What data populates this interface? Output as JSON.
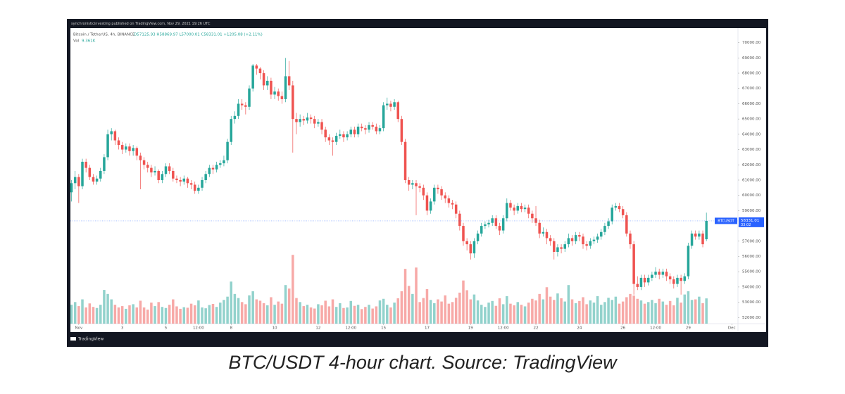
{
  "header": {
    "publisher": "synchronisticinvesting published on TradingView.com, Nov 29, 2021 19:26 UTC"
  },
  "chart_data": {
    "type": "candlestick",
    "legend": {
      "symbol": "Bitcoin / TetherUS, 4h, BINANCE",
      "ohlc": "O57125.93 H58869.97 L57000.01 C58331.01 +1205.08 (+2.11%)",
      "volume_name": "Vol",
      "volume": "9.361K"
    },
    "up_color": "#26a69a",
    "down_color": "#ef5350",
    "xlim": [
      -0.3,
      183.7
    ],
    "xticks": [
      {
        "value": 2,
        "label": "Nov"
      },
      {
        "value": 14,
        "label": "3"
      },
      {
        "value": 26,
        "label": "5"
      },
      {
        "value": 35,
        "label": "12:00"
      },
      {
        "value": 44,
        "label": "8"
      },
      {
        "value": 56,
        "label": "10"
      },
      {
        "value": 68,
        "label": "12"
      },
      {
        "value": 77,
        "label": "12:00"
      },
      {
        "value": 86,
        "label": "15"
      },
      {
        "value": 98,
        "label": "17"
      },
      {
        "value": 110,
        "label": "19"
      },
      {
        "value": 119,
        "label": "12:00"
      },
      {
        "value": 128,
        "label": "22"
      },
      {
        "value": 140,
        "label": "24"
      },
      {
        "value": 152,
        "label": "26"
      },
      {
        "value": 161,
        "label": "12:00"
      },
      {
        "value": 170,
        "label": "29"
      },
      {
        "value": 182,
        "label": "Dec"
      }
    ],
    "ylim": [
      51600,
      70950
    ],
    "yticks": [
      {
        "value": 52000,
        "label": "52000.00"
      },
      {
        "value": 53000,
        "label": "53000.00"
      },
      {
        "value": 54000,
        "label": "54000.00"
      },
      {
        "value": 55000,
        "label": "55000.00"
      },
      {
        "value": 56000,
        "label": "56000.00"
      },
      {
        "value": 57000,
        "label": "57000.00"
      },
      {
        "value": 58000,
        "label": "58000.00"
      },
      {
        "value": 59000,
        "label": "59000.00"
      },
      {
        "value": 60000,
        "label": "60000.00"
      },
      {
        "value": 61000,
        "label": "61000.00"
      },
      {
        "value": 62000,
        "label": "62000.00"
      },
      {
        "value": 63000,
        "label": "63000.00"
      },
      {
        "value": 64000,
        "label": "64000.00"
      },
      {
        "value": 65000,
        "label": "65000.00"
      },
      {
        "value": 66000,
        "label": "66000.00"
      },
      {
        "value": 67000,
        "label": "67000.00"
      },
      {
        "value": 68000,
        "label": "68000.00"
      },
      {
        "value": 69000,
        "label": "69000.00"
      },
      {
        "value": 70000,
        "label": "70000.00"
      }
    ],
    "volume_lim": [
      0,
      60000
    ],
    "ohlc": [
      [
        60200,
        61000,
        59600,
        60800
      ],
      [
        60800,
        61600,
        60400,
        61200
      ],
      [
        61200,
        61400,
        59500,
        60600
      ],
      [
        60600,
        62400,
        60400,
        62200
      ],
      [
        62200,
        62400,
        61500,
        61800
      ],
      [
        61800,
        62000,
        61000,
        61200
      ],
      [
        61200,
        61400,
        60700,
        60900
      ],
      [
        60900,
        61300,
        60700,
        61100
      ],
      [
        61100,
        61800,
        60900,
        61600
      ],
      [
        61600,
        62700,
        61400,
        62500
      ],
      [
        62500,
        64300,
        62300,
        64000
      ],
      [
        64000,
        64400,
        63600,
        64200
      ],
      [
        64200,
        64300,
        63300,
        63600
      ],
      [
        63600,
        63800,
        63000,
        63300
      ],
      [
        63300,
        63500,
        62700,
        63000
      ],
      [
        63000,
        63400,
        62800,
        63200
      ],
      [
        63200,
        63400,
        62600,
        62900
      ],
      [
        62900,
        63300,
        62600,
        63100
      ],
      [
        63100,
        63200,
        62300,
        62600
      ],
      [
        62600,
        62800,
        60400,
        62300
      ],
      [
        62300,
        62500,
        61700,
        62000
      ],
      [
        62000,
        62200,
        61500,
        61800
      ],
      [
        61800,
        62000,
        61200,
        61500
      ],
      [
        61500,
        61900,
        61300,
        61600
      ],
      [
        61600,
        61700,
        60800,
        61000
      ],
      [
        61000,
        61600,
        60800,
        61400
      ],
      [
        61400,
        62100,
        61200,
        61900
      ],
      [
        61900,
        62100,
        61400,
        61600
      ],
      [
        61600,
        61800,
        60900,
        61100
      ],
      [
        61100,
        61300,
        60800,
        61000
      ],
      [
        61000,
        61200,
        60600,
        60900
      ],
      [
        60900,
        61300,
        60700,
        61100
      ],
      [
        61100,
        61200,
        60500,
        60800
      ],
      [
        60800,
        61000,
        60400,
        60700
      ],
      [
        60700,
        60900,
        60100,
        60300
      ],
      [
        60300,
        60700,
        60100,
        60500
      ],
      [
        60500,
        61200,
        60300,
        61000
      ],
      [
        61000,
        61600,
        60800,
        61400
      ],
      [
        61400,
        62000,
        61200,
        61800
      ],
      [
        61800,
        62000,
        61400,
        61700
      ],
      [
        61700,
        62200,
        61500,
        62000
      ],
      [
        62000,
        62300,
        61800,
        62100
      ],
      [
        62100,
        62600,
        61900,
        62300
      ],
      [
        62300,
        63700,
        62100,
        63500
      ],
      [
        63500,
        65200,
        63300,
        65000
      ],
      [
        65000,
        65500,
        64700,
        65200
      ],
      [
        65200,
        66300,
        65000,
        66000
      ],
      [
        66000,
        66300,
        65600,
        65900
      ],
      [
        65900,
        66100,
        65300,
        65800
      ],
      [
        65800,
        67200,
        65600,
        67000
      ],
      [
        67000,
        68600,
        66800,
        68500
      ],
      [
        68500,
        68600,
        67900,
        68300
      ],
      [
        68300,
        68400,
        67600,
        68000
      ],
      [
        68000,
        68200,
        66900,
        67200
      ],
      [
        67200,
        67800,
        66900,
        67500
      ],
      [
        67500,
        67700,
        66300,
        66600
      ],
      [
        66600,
        67100,
        66300,
        66800
      ],
      [
        66800,
        67000,
        66200,
        66500
      ],
      [
        66500,
        66800,
        66000,
        66300
      ],
      [
        66300,
        69000,
        66100,
        67800
      ],
      [
        67800,
        68800,
        66900,
        67200
      ],
      [
        67200,
        67500,
        62800,
        65000
      ],
      [
        65000,
        65400,
        64000,
        64800
      ],
      [
        64800,
        65300,
        64500,
        65000
      ],
      [
        65000,
        65200,
        64600,
        64900
      ],
      [
        64900,
        65400,
        64700,
        65100
      ],
      [
        65100,
        65300,
        64700,
        65000
      ],
      [
        65000,
        65200,
        64400,
        64700
      ],
      [
        64700,
        65000,
        64500,
        64800
      ],
      [
        64800,
        65000,
        64000,
        64300
      ],
      [
        64300,
        64500,
        63500,
        63800
      ],
      [
        63800,
        64000,
        63300,
        63600
      ],
      [
        63600,
        63800,
        62600,
        63500
      ],
      [
        63500,
        64100,
        63300,
        63900
      ],
      [
        63900,
        64300,
        63700,
        64000
      ],
      [
        64000,
        64200,
        63500,
        63800
      ],
      [
        63800,
        64200,
        63600,
        64000
      ],
      [
        64000,
        64500,
        63800,
        64300
      ],
      [
        64300,
        64500,
        63800,
        64000
      ],
      [
        64000,
        64700,
        63800,
        64500
      ],
      [
        64500,
        64700,
        64200,
        64400
      ],
      [
        64400,
        64600,
        64000,
        64300
      ],
      [
        64300,
        64800,
        64100,
        64600
      ],
      [
        64600,
        64800,
        64300,
        64500
      ],
      [
        64500,
        64700,
        64000,
        64200
      ],
      [
        64200,
        64600,
        64000,
        64400
      ],
      [
        64400,
        66100,
        64200,
        65900
      ],
      [
        65900,
        66400,
        65600,
        66000
      ],
      [
        66000,
        66200,
        65500,
        65800
      ],
      [
        65800,
        66300,
        65600,
        66100
      ],
      [
        66100,
        66200,
        64800,
        65000
      ],
      [
        65000,
        65200,
        63300,
        63500
      ],
      [
        63500,
        63700,
        60800,
        61000
      ],
      [
        61000,
        61200,
        60300,
        60700
      ],
      [
        60700,
        61000,
        60400,
        60800
      ],
      [
        60800,
        61000,
        58700,
        60600
      ],
      [
        60600,
        60800,
        60200,
        60500
      ],
      [
        60500,
        60700,
        59700,
        60000
      ],
      [
        60000,
        60200,
        58700,
        59000
      ],
      [
        59000,
        59800,
        58800,
        59600
      ],
      [
        59600,
        60700,
        59400,
        60500
      ],
      [
        60500,
        60700,
        60100,
        60400
      ],
      [
        60400,
        60600,
        59700,
        60000
      ],
      [
        60000,
        60200,
        59500,
        59800
      ],
      [
        59800,
        60000,
        59200,
        59500
      ],
      [
        59500,
        59700,
        59100,
        59400
      ],
      [
        59400,
        59600,
        58500,
        58800
      ],
      [
        58800,
        59000,
        57700,
        58000
      ],
      [
        58000,
        58200,
        56700,
        57000
      ],
      [
        57000,
        57200,
        56400,
        56800
      ],
      [
        56800,
        57000,
        55800,
        56200
      ],
      [
        56200,
        57200,
        55900,
        57000
      ],
      [
        57000,
        57700,
        56800,
        57500
      ],
      [
        57500,
        58200,
        57300,
        58000
      ],
      [
        58000,
        58300,
        57800,
        58100
      ],
      [
        58100,
        58400,
        57900,
        58200
      ],
      [
        58200,
        58700,
        58000,
        58500
      ],
      [
        58500,
        58700,
        57800,
        58000
      ],
      [
        58000,
        58200,
        57400,
        57700
      ],
      [
        57700,
        58700,
        57500,
        58500
      ],
      [
        58500,
        59800,
        58300,
        59500
      ],
      [
        59500,
        59700,
        59000,
        59200
      ],
      [
        59200,
        59400,
        58700,
        59000
      ],
      [
        59000,
        59500,
        58800,
        59300
      ],
      [
        59300,
        59500,
        58900,
        59100
      ],
      [
        59100,
        59400,
        58900,
        59200
      ],
      [
        59200,
        59400,
        58500,
        58800
      ],
      [
        58800,
        59000,
        58200,
        58500
      ],
      [
        58500,
        59300,
        58000,
        58200
      ],
      [
        58200,
        58400,
        57200,
        57500
      ],
      [
        57500,
        57900,
        57300,
        57600
      ],
      [
        57600,
        57800,
        56800,
        57200
      ],
      [
        57200,
        57400,
        56700,
        57000
      ],
      [
        57000,
        57200,
        55800,
        56300
      ],
      [
        56300,
        56800,
        56000,
        56600
      ],
      [
        56600,
        56800,
        56200,
        56500
      ],
      [
        56500,
        57000,
        56300,
        56800
      ],
      [
        56800,
        57500,
        56600,
        57200
      ],
      [
        57200,
        57400,
        56700,
        57000
      ],
      [
        57000,
        57600,
        56800,
        57400
      ],
      [
        57400,
        57600,
        57000,
        57300
      ],
      [
        57300,
        57500,
        56500,
        56800
      ],
      [
        56800,
        57000,
        56400,
        56700
      ],
      [
        56700,
        57200,
        56500,
        57000
      ],
      [
        57000,
        57300,
        56800,
        57100
      ],
      [
        57100,
        57500,
        56900,
        57300
      ],
      [
        57300,
        57800,
        57100,
        57600
      ],
      [
        57600,
        58200,
        57400,
        58000
      ],
      [
        58000,
        58500,
        57800,
        58300
      ],
      [
        58300,
        59400,
        58100,
        59200
      ],
      [
        59200,
        59500,
        59000,
        59300
      ],
      [
        59300,
        59500,
        58900,
        59100
      ],
      [
        59100,
        59300,
        58500,
        58700
      ],
      [
        58700,
        58900,
        57300,
        57500
      ],
      [
        57500,
        57700,
        56500,
        56800
      ],
      [
        56800,
        57000,
        53500,
        54200
      ],
      [
        54200,
        54700,
        53800,
        54000
      ],
      [
        54000,
        54800,
        53800,
        54600
      ],
      [
        54600,
        54800,
        54000,
        54300
      ],
      [
        54300,
        54800,
        54100,
        54600
      ],
      [
        54600,
        55000,
        54400,
        54800
      ],
      [
        54800,
        55300,
        54600,
        55000
      ],
      [
        55000,
        55200,
        54500,
        54800
      ],
      [
        54800,
        55200,
        54600,
        55000
      ],
      [
        55000,
        55200,
        54400,
        54700
      ],
      [
        54700,
        54900,
        54200,
        54500
      ],
      [
        54500,
        54700,
        53900,
        54200
      ],
      [
        54200,
        54800,
        54000,
        54600
      ],
      [
        54600,
        54800,
        53500,
        54400
      ],
      [
        54400,
        54900,
        54200,
        54700
      ],
      [
        54700,
        56900,
        54500,
        56700
      ],
      [
        56700,
        57700,
        56500,
        57500
      ],
      [
        57500,
        57700,
        57100,
        57300
      ],
      [
        57300,
        57700,
        57100,
        57500
      ],
      [
        57500,
        57700,
        56600,
        56800
      ],
      [
        57125.93,
        58869.97,
        57000.01,
        58331.01
      ]
    ],
    "volume": [
      7000,
      8000,
      6500,
      9000,
      6000,
      7500,
      6200,
      5800,
      7000,
      12500,
      11000,
      9000,
      7000,
      6000,
      6500,
      5500,
      6800,
      7200,
      6000,
      8500,
      6000,
      5200,
      7800,
      6500,
      8000,
      6200,
      5800,
      7000,
      9000,
      6400,
      5500,
      6100,
      5900,
      7400,
      6800,
      8600,
      6000,
      5700,
      6900,
      7300,
      6200,
      7800,
      8800,
      10000,
      15600,
      11000,
      9500,
      8000,
      7200,
      10500,
      12000,
      9000,
      8500,
      7600,
      6800,
      9800,
      7000,
      8200,
      7400,
      14300,
      13000,
      25500,
      9500,
      8000,
      6500,
      7000,
      6000,
      5600,
      7200,
      6800,
      8500,
      6400,
      9000,
      6200,
      7600,
      5800,
      6000,
      8400,
      6600,
      7000,
      5400,
      6200,
      7000,
      5600,
      6400,
      8600,
      9200,
      7000,
      6000,
      7800,
      9400,
      12000,
      20300,
      14000,
      11000,
      20800,
      8000,
      9500,
      12800,
      8800,
      7600,
      9000,
      8200,
      10500,
      7400,
      8000,
      9600,
      11500,
      16000,
      12400,
      9000,
      10800,
      8600,
      7000,
      6200,
      7800,
      8400,
      6600,
      9400,
      7200,
      10200,
      7400,
      6800,
      8000,
      7000,
      6400,
      7800,
      9200,
      8600,
      11000,
      9000,
      13500,
      10000,
      8800,
      11200,
      9400,
      8200,
      14300,
      9000,
      7600,
      8400,
      9800,
      7200,
      8600,
      7800,
      10200,
      7000,
      8000,
      9600,
      8800,
      10000,
      7400,
      8200,
      9800,
      11000,
      10400,
      9200,
      8600,
      7400,
      8000,
      8800,
      7600,
      9200,
      8200,
      7000,
      8400,
      6800,
      9600,
      7800,
      10800,
      12000,
      8800,
      9000,
      10000,
      7600,
      9361
    ],
    "price_label": {
      "symbol": "BTCUSDT",
      "price": "58331.01",
      "countdown": "33:02"
    },
    "source_logo": "TradingView",
    "caption": "BTC/USDT 4-hour chart. Source: TradingView"
  }
}
